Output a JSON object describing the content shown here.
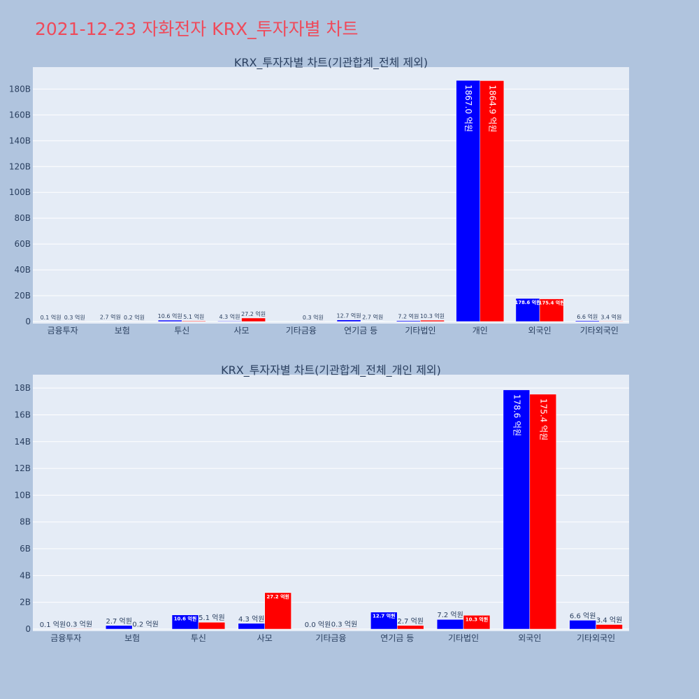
{
  "page": {
    "title": "2021-12-23 자화전자 KRX_투자자별 차트",
    "title_color": "#ef4a5a",
    "background": "#b0c4de",
    "plot_background": "#e5ecf6"
  },
  "colors": {
    "buy": "#0000ff",
    "sell": "#ff0000"
  },
  "chart_data": [
    {
      "type": "bar",
      "title": "KRX_투자자별 차트(기관합계_전체 제외)",
      "categories": [
        "금융투자",
        "보험",
        "투신",
        "사모",
        "기타금융",
        "연기금 등",
        "기타법인",
        "개인",
        "외국인",
        "기타외국인"
      ],
      "series": [
        {
          "color": "#0000ff",
          "values": [
            0.1,
            2.7,
            10.6,
            4.3,
            0.0,
            12.7,
            7.2,
            1867.0,
            178.6,
            6.6
          ],
          "labels": [
            "0.1 억원",
            "2.7 억원",
            "10.6 억원",
            "4.3 억원",
            "",
            "12.7 억원",
            "7.2 억원",
            "1867.0 억원",
            "178.6 억원",
            "6.6 억원"
          ]
        },
        {
          "color": "#ff0000",
          "values": [
            0.3,
            0.2,
            5.1,
            27.2,
            0.3,
            2.7,
            10.3,
            1864.9,
            175.4,
            3.4
          ],
          "labels": [
            "0.3 억원",
            "0.2 억원",
            "5.1 억원",
            "27.2 억원",
            "0.3 억원",
            "2.7 억원",
            "10.3 억원",
            "1864.9 억원",
            "175.4 억원",
            "3.4 억원"
          ]
        }
      ],
      "value_unit_per_tick": "억원",
      "ylim": [
        0,
        1970
      ],
      "yticks": [
        0,
        200,
        400,
        600,
        800,
        1000,
        1200,
        1400,
        1600,
        1800
      ],
      "ytick_labels": [
        "0",
        "20B",
        "40B",
        "60B",
        "80B",
        "100B",
        "120B",
        "140B",
        "160B",
        "180B"
      ],
      "grid": true,
      "legend": "none"
    },
    {
      "type": "bar",
      "title": "KRX_투자자별 차트(기관합계_전체_개인 제외)",
      "categories": [
        "금융투자",
        "보험",
        "투신",
        "사모",
        "기타금융",
        "연기금 등",
        "기타법인",
        "외국인",
        "기타외국인"
      ],
      "series": [
        {
          "color": "#0000ff",
          "values": [
            0.1,
            2.7,
            10.6,
            4.3,
            0.0,
            12.7,
            7.2,
            178.6,
            6.6
          ],
          "labels": [
            "0.1 억원",
            "2.7 억원",
            "10.6 억원",
            "4.3 억원",
            "0.0 억원",
            "12.7 억원",
            "7.2 억원",
            "178.6 억원",
            "6.6 억원"
          ]
        },
        {
          "color": "#ff0000",
          "values": [
            0.3,
            0.2,
            5.1,
            27.2,
            0.3,
            2.7,
            10.3,
            175.4,
            3.4
          ],
          "labels": [
            "0.3 억원",
            "0.2 억원",
            "5.1 억원",
            "27.2 억원",
            "0.3 억원",
            "2.7 억원",
            "10.3 억원",
            "175.4 억원",
            "3.4 억원"
          ]
        }
      ],
      "ylim": [
        0,
        190
      ],
      "yticks": [
        0,
        20,
        40,
        60,
        80,
        100,
        120,
        140,
        160,
        180
      ],
      "ytick_labels": [
        "0",
        "2B",
        "4B",
        "6B",
        "8B",
        "10B",
        "12B",
        "14B",
        "16B",
        "18B"
      ],
      "grid": true,
      "legend": "none"
    }
  ]
}
